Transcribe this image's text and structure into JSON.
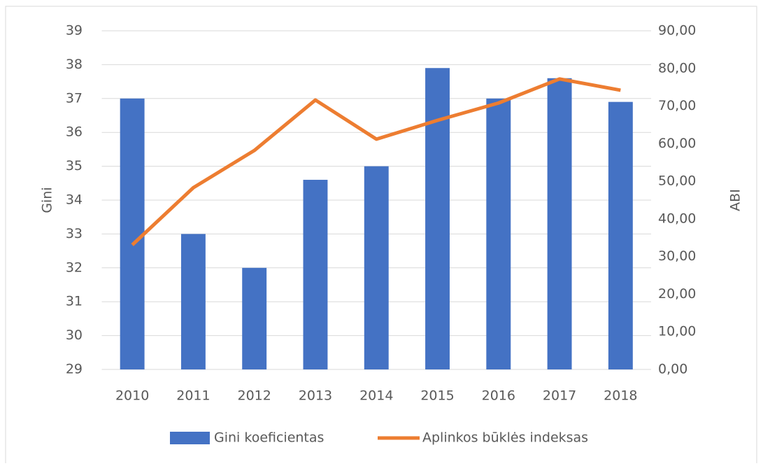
{
  "chart_data": {
    "type": "bar",
    "categories": [
      "2010",
      "2011",
      "2012",
      "2013",
      "2014",
      "2015",
      "2016",
      "2017",
      "2018"
    ],
    "series": [
      {
        "name": "Gini koeficientas",
        "type": "bar",
        "color": "#4472c4",
        "values": [
          37,
          33,
          32,
          34.6,
          35,
          37.9,
          37,
          37.6,
          36.9
        ]
      },
      {
        "name": "Aplinkos būklės indeksas",
        "type": "line",
        "axis": "y2",
        "color": "#ed7d31",
        "values": [
          33.1,
          48.3,
          58.2,
          71.6,
          61.2,
          66.2,
          70.8,
          77.2,
          74.2
        ]
      }
    ],
    "ylabel": "Gini",
    "y2label": "ABI",
    "ylim": [
      29,
      39
    ],
    "yticks": [
      29,
      30,
      31,
      32,
      33,
      34,
      35,
      36,
      37,
      38,
      39
    ],
    "y2lim": [
      0,
      90
    ],
    "y2ticks": [
      {
        "value": 0,
        "label": "0,00"
      },
      {
        "value": 10,
        "label": "10,00"
      },
      {
        "value": 20,
        "label": "20,00"
      },
      {
        "value": 30,
        "label": "30,00"
      },
      {
        "value": 40,
        "label": "40,00"
      },
      {
        "value": 50,
        "label": "50,00"
      },
      {
        "value": 60,
        "label": "60,00"
      },
      {
        "value": 70,
        "label": "70,00"
      },
      {
        "value": 80,
        "label": "80,00"
      },
      {
        "value": 90,
        "label": "90,00"
      }
    ],
    "grid": true,
    "legend": "bottom"
  }
}
